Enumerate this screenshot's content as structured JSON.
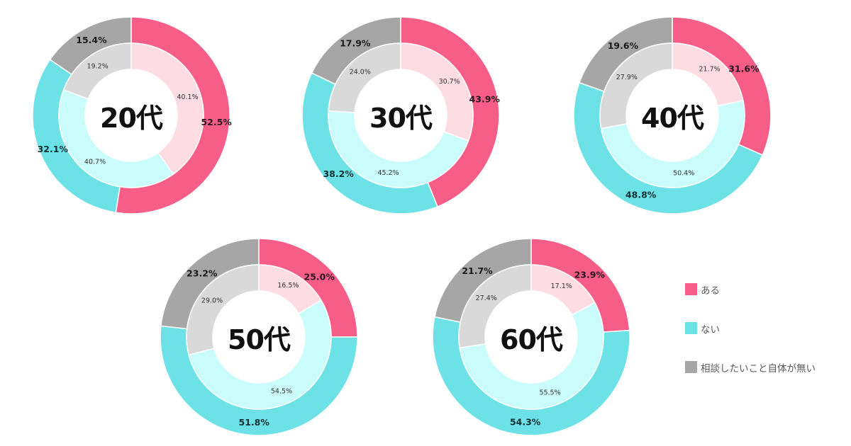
{
  "legend": {
    "items": [
      {
        "label": "ある",
        "color": "#F75E87"
      },
      {
        "label": "ない",
        "color": "#6CE2E6"
      },
      {
        "label": "相談したいこと自体が無い",
        "color": "#A6A6A6"
      }
    ]
  },
  "colors": {
    "outer": [
      "#F75E87",
      "#6CE2E6",
      "#A6A6A6"
    ],
    "inner": [
      "#FDDCE4",
      "#CBFCFC",
      "#D9D9D9"
    ],
    "outer_label": [
      "#2A1420",
      "#0C3034",
      "#1A1A1A"
    ]
  },
  "chart_data": [
    {
      "type": "pie",
      "title": "20代",
      "categories": [
        "ある",
        "ない",
        "相談したいこと自体が無い"
      ],
      "series": [
        {
          "name": "outer",
          "values": [
            52.5,
            32.1,
            15.4
          ],
          "labels": [
            "52.5%",
            "32.1%",
            "15.4%"
          ]
        },
        {
          "name": "inner",
          "values": [
            40.1,
            40.7,
            19.2
          ],
          "labels": [
            "40.1%",
            "40.7%",
            "19.2%"
          ]
        }
      ]
    },
    {
      "type": "pie",
      "title": "30代",
      "categories": [
        "ある",
        "ない",
        "相談したいこと自体が無い"
      ],
      "series": [
        {
          "name": "outer",
          "values": [
            43.9,
            38.2,
            17.9
          ],
          "labels": [
            "43.9%",
            "38.2%",
            "17.9%"
          ]
        },
        {
          "name": "inner",
          "values": [
            30.7,
            45.2,
            24.0
          ],
          "labels": [
            "30.7%",
            "45.2%",
            "24.0%"
          ]
        }
      ]
    },
    {
      "type": "pie",
      "title": "40代",
      "categories": [
        "ある",
        "ない",
        "相談したいこと自体が無い"
      ],
      "series": [
        {
          "name": "outer",
          "values": [
            31.6,
            48.8,
            19.6
          ],
          "labels": [
            "31.6%",
            "48.8%",
            "19.6%"
          ]
        },
        {
          "name": "inner",
          "values": [
            21.7,
            50.4,
            27.9
          ],
          "labels": [
            "21.7%",
            "50.4%",
            "27.9%"
          ]
        }
      ]
    },
    {
      "type": "pie",
      "title": "50代",
      "categories": [
        "ある",
        "ない",
        "相談したいこと自体が無い"
      ],
      "series": [
        {
          "name": "outer",
          "values": [
            25.0,
            51.8,
            23.2
          ],
          "labels": [
            "25.0%",
            "51.8%",
            "23.2%"
          ]
        },
        {
          "name": "inner",
          "values": [
            16.5,
            54.5,
            29.0
          ],
          "labels": [
            "16.5%",
            "54.5%",
            "29.0%"
          ]
        }
      ]
    },
    {
      "type": "pie",
      "title": "60代",
      "categories": [
        "ある",
        "ない",
        "相談したいこと自体が無い"
      ],
      "series": [
        {
          "name": "outer",
          "values": [
            23.9,
            54.3,
            21.7
          ],
          "labels": [
            "23.9%",
            "54.3%",
            "21.7%"
          ]
        },
        {
          "name": "inner",
          "values": [
            17.1,
            55.5,
            27.4
          ],
          "labels": [
            "17.1%",
            "55.5%",
            "27.4%"
          ]
        }
      ]
    }
  ]
}
